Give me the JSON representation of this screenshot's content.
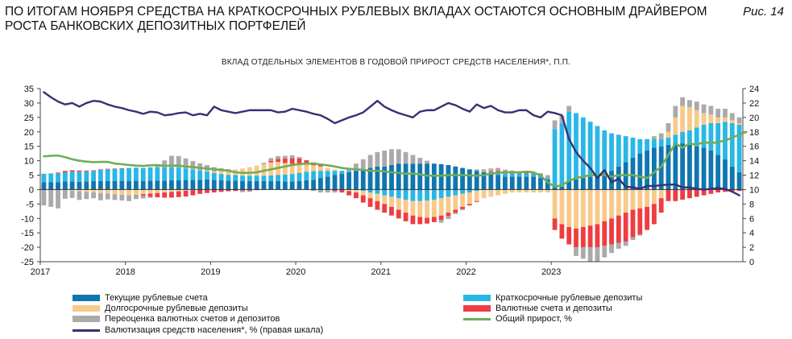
{
  "header": {
    "title_line1": "ПО ИТОГАМ НОЯБРЯ СРЕДСТВА НА КРАТКОСРОЧНЫХ РУБЛЕВЫХ ВКЛАДАХ ОСТАЮТСЯ ОСНОВНЫМ ДРАЙВЕРОМ",
    "title_line2": "РОСТА БАНКОВСКИХ ДЕПОЗИТНЫХ ПОРТФЕЛЕЙ",
    "figure_label": "Рис. 14"
  },
  "chart_data": {
    "type": "bar",
    "stacked": true,
    "title": "ВКЛАД ОТДЕЛЬНЫХ ЭЛЕМЕНТОВ В ГОДОВОЙ ПРИРОСТ СРЕДСТВ НАСЕЛЕНИЯ*, П.П.",
    "x_start": "2017-01",
    "x_tick_labels": [
      "2017",
      "2018",
      "2019",
      "2020",
      "2021",
      "2022",
      "2023"
    ],
    "left_axis": {
      "min": -25,
      "max": 35,
      "step": 5,
      "tick_labels": [
        "35",
        "30",
        "25",
        "20",
        "15",
        "10",
        "5",
        "0",
        "-5",
        "-10",
        "-15",
        "-20",
        "-25"
      ]
    },
    "right_axis": {
      "min": 0,
      "max": 24,
      "step": 2,
      "tick_labels": [
        "24",
        "22",
        "20",
        "18",
        "16",
        "14",
        "12",
        "10",
        "8",
        "6",
        "4",
        "2",
        "0"
      ]
    },
    "colors": {
      "current": "#0f76b0",
      "shortterm": "#29b7e6",
      "longterm": "#f8c98a",
      "fx": "#ee3d42",
      "reval": "#aaaaaa",
      "total": "#6fad5a",
      "dollarization": "#3a2f73"
    },
    "series": [
      {
        "key": "current",
        "name": "Текущие рублевые счета",
        "axis": "left",
        "values": [
          2.5,
          2.6,
          2.6,
          2.8,
          2.8,
          2.7,
          2.8,
          2.9,
          3.0,
          3.0,
          3.0,
          3.0,
          3.0,
          3.1,
          3.0,
          3.1,
          3.1,
          3.1,
          3.2,
          3.2,
          3.3,
          3.3,
          3.4,
          3.5,
          3.3,
          3.2,
          3.1,
          3.1,
          3.0,
          3.0,
          3.0,
          3.0,
          2.9,
          2.9,
          2.8,
          2.8,
          3.0,
          3.2,
          3.4,
          4.0,
          4.5,
          5.0,
          5.5,
          6.0,
          6.5,
          7.0,
          7.5,
          8.0,
          8.0,
          8.5,
          9.0,
          9.0,
          9.0,
          9.0,
          9.0,
          9.0,
          8.8,
          8.5,
          8.0,
          7.5,
          7.0,
          6.5,
          6.0,
          5.5,
          5.0,
          4.5,
          4.5,
          4.5,
          4.5,
          4.5,
          4.0,
          3.5,
          1.0,
          1.0,
          3.0,
          3.5,
          4.0,
          4.5,
          5.0,
          5.5,
          6.5,
          8.0,
          9.5,
          11.0,
          12.5,
          13.5,
          14.5,
          15.0,
          15.5,
          16.0,
          16.0,
          15.5,
          15.0,
          14.5,
          13.5,
          12.0,
          10.5,
          8.0,
          6.0
        ]
      },
      {
        "key": "shortterm",
        "name": "Краткосрочные рублевые депозиты",
        "axis": "left",
        "values": [
          3.0,
          3.0,
          3.0,
          3.2,
          3.4,
          3.5,
          3.5,
          3.6,
          3.8,
          4.0,
          4.2,
          4.3,
          4.5,
          4.5,
          4.5,
          4.6,
          4.5,
          4.5,
          4.5,
          4.4,
          4.0,
          3.6,
          3.2,
          2.8,
          2.5,
          2.2,
          2.0,
          1.9,
          1.8,
          1.8,
          1.8,
          1.8,
          2.0,
          2.2,
          2.4,
          2.6,
          2.8,
          3.0,
          3.0,
          2.5,
          2.0,
          1.5,
          1.0,
          0.5,
          0.0,
          -0.5,
          -1.0,
          -1.5,
          -2.0,
          -2.5,
          -3.0,
          -3.5,
          -4.0,
          -4.0,
          -3.8,
          -3.5,
          -3.0,
          -2.5,
          -2.0,
          -1.5,
          -1.0,
          -0.5,
          0.0,
          0.5,
          1.0,
          1.0,
          1.0,
          1.0,
          1.0,
          1.0,
          1.0,
          0.5,
          20.0,
          22.0,
          24.0,
          23.0,
          21.0,
          19.0,
          17.0,
          15.0,
          13.0,
          11.0,
          9.0,
          7.0,
          5.0,
          4.0,
          3.0,
          2.5,
          2.5,
          3.0,
          4.0,
          5.0,
          6.5,
          8.0,
          9.5,
          11.0,
          13.0,
          15.0,
          16.5
        ]
      },
      {
        "key": "longterm",
        "name": "Долгосрочные рублевые депозиты",
        "axis": "left",
        "values": [
          0.0,
          0.0,
          0.0,
          -0.2,
          -0.4,
          -0.6,
          -0.8,
          -1.0,
          -1.2,
          -1.4,
          -1.6,
          -1.8,
          -2.0,
          -1.8,
          -1.6,
          -1.4,
          -1.2,
          -1.0,
          -0.8,
          -0.6,
          -0.4,
          -0.2,
          0.0,
          0.2,
          0.5,
          1.0,
          1.5,
          2.0,
          2.5,
          3.0,
          3.5,
          4.0,
          4.5,
          4.5,
          4.0,
          3.5,
          3.0,
          2.5,
          2.0,
          1.5,
          1.0,
          0.5,
          0.0,
          -0.5,
          -1.0,
          -1.5,
          -2.0,
          -2.5,
          -3.0,
          -3.5,
          -4.0,
          -4.5,
          -5.0,
          -5.5,
          -6.0,
          -6.0,
          -6.0,
          -5.5,
          -5.0,
          -4.5,
          -4.0,
          -3.5,
          -3.0,
          -2.5,
          -2.0,
          -1.5,
          -1.0,
          -1.0,
          -1.0,
          -1.0,
          -1.0,
          -1.0,
          -10.0,
          -12.0,
          -13.0,
          -13.5,
          -13.0,
          -12.5,
          -12.0,
          -11.0,
          -10.0,
          -9.0,
          -8.0,
          -7.0,
          -6.5,
          -6.0,
          -5.0,
          -3.0,
          2.0,
          6.0,
          9.0,
          8.0,
          6.0,
          4.0,
          3.0,
          2.0,
          1.5,
          1.0,
          0.5
        ]
      },
      {
        "key": "fx",
        "name": "Валютные счета и депозиты",
        "axis": "left",
        "values": [
          0.0,
          0.0,
          0.3,
          0.5,
          0.5,
          0.4,
          0.3,
          0.2,
          0.2,
          0.2,
          0.1,
          0.1,
          0.0,
          0.0,
          -0.5,
          -1.0,
          -1.5,
          -1.8,
          -2.0,
          -2.0,
          -2.0,
          -1.8,
          -1.5,
          -1.2,
          -1.0,
          -0.8,
          -0.6,
          -0.5,
          -0.4,
          -0.3,
          -0.2,
          0.0,
          0.5,
          1.0,
          1.5,
          2.0,
          2.0,
          1.5,
          1.0,
          0.5,
          0.0,
          -0.5,
          -1.0,
          -1.5,
          -2.0,
          -2.5,
          -3.0,
          -3.0,
          -3.0,
          -3.0,
          -3.0,
          -3.0,
          -3.0,
          -2.5,
          -2.0,
          -1.8,
          -1.5,
          -1.2,
          -1.0,
          -0.8,
          -0.5,
          -0.3,
          0.0,
          0.3,
          0.5,
          0.6,
          0.6,
          0.5,
          0.4,
          0.3,
          0.2,
          0.0,
          -4.0,
          -5.0,
          -6.0,
          -6.5,
          -7.0,
          -7.5,
          -8.0,
          -8.5,
          -9.0,
          -9.5,
          -10.0,
          -9.5,
          -9.0,
          -8.0,
          -7.0,
          -5.0,
          -4.0,
          -4.0,
          -3.5,
          -3.0,
          -2.5,
          -2.0,
          -1.5,
          -1.0,
          -0.8,
          -0.6,
          -0.5
        ]
      },
      {
        "key": "reval",
        "name": "Переоценка валютных счетов и депозитов",
        "axis": "left",
        "values": [
          -5.5,
          -6.0,
          -6.5,
          -3.0,
          -2.5,
          -3.0,
          -2.5,
          -2.0,
          -2.5,
          -2.0,
          -2.0,
          -2.0,
          -2.0,
          -1.5,
          -1.0,
          -0.5,
          1.0,
          2.5,
          4.0,
          4.0,
          3.5,
          3.0,
          2.5,
          2.0,
          1.5,
          1.0,
          0.5,
          0.0,
          -0.5,
          -0.5,
          0.0,
          0.5,
          1.0,
          1.0,
          1.0,
          1.0,
          0.5,
          0.0,
          -0.5,
          -1.0,
          -1.0,
          -0.5,
          0.0,
          1.0,
          2.5,
          3.5,
          4.5,
          5.0,
          5.5,
          5.5,
          5.0,
          4.0,
          3.0,
          2.0,
          1.0,
          0.0,
          -1.0,
          -1.0,
          -0.5,
          -0.3,
          0.0,
          0.5,
          1.0,
          1.0,
          1.0,
          0.8,
          0.5,
          0.3,
          0.2,
          0.1,
          0.5,
          1.0,
          3.0,
          2.5,
          2.0,
          -3.0,
          -4.0,
          -5.0,
          -5.0,
          -4.0,
          -3.0,
          -2.0,
          -1.5,
          -1.0,
          -0.5,
          0.0,
          1.0,
          2.0,
          3.0,
          4.0,
          3.0,
          2.5,
          3.0,
          3.0,
          3.0,
          3.0,
          3.0,
          2.5,
          2.0
        ]
      },
      {
        "key": "total",
        "name": "Общий прирост, %",
        "axis": "left",
        "type": "line",
        "values": [
          11.5,
          11.7,
          11.8,
          11.2,
          10.5,
          10.0,
          9.7,
          9.5,
          9.6,
          9.6,
          9.0,
          8.8,
          8.5,
          8.3,
          8.2,
          8.4,
          8.5,
          8.2,
          8.3,
          8.3,
          8.0,
          7.8,
          7.5,
          7.3,
          7.0,
          6.8,
          6.5,
          6.0,
          5.8,
          5.8,
          6.0,
          6.5,
          7.0,
          7.5,
          8.0,
          8.5,
          8.8,
          9.0,
          9.0,
          8.7,
          8.4,
          8.0,
          7.5,
          7.2,
          7.0,
          6.8,
          6.5,
          6.5,
          6.3,
          6.0,
          5.8,
          5.5,
          5.5,
          5.3,
          4.8,
          4.8,
          4.8,
          5.0,
          5.0,
          5.0,
          4.9,
          4.8,
          5.0,
          5.5,
          5.8,
          6.0,
          6.0,
          6.0,
          6.2,
          6.0,
          4.8,
          2.5,
          1.0,
          1.5,
          3.0,
          4.0,
          4.5,
          5.0,
          5.0,
          5.0,
          4.5,
          5.0,
          5.0,
          5.0,
          4.5,
          4.0,
          6.0,
          8.0,
          12.0,
          16.0,
          14.5,
          16.0,
          15.5,
          16.5,
          16.0,
          16.5,
          17.0,
          18.0,
          19.0,
          20.0
        ]
      },
      {
        "key": "dollarization",
        "name": "Валютизация средств населения*, % (правая шкала)",
        "axis": "right",
        "type": "line",
        "values": [
          23.5,
          22.8,
          22.2,
          21.8,
          22.0,
          21.5,
          22.0,
          22.3,
          22.2,
          21.8,
          21.5,
          21.3,
          21.0,
          20.8,
          20.5,
          20.8,
          20.7,
          20.3,
          20.4,
          20.6,
          20.7,
          20.3,
          20.5,
          20.3,
          21.5,
          21.0,
          20.8,
          20.6,
          20.8,
          21.0,
          21.0,
          21.0,
          21.0,
          20.7,
          20.8,
          21.2,
          21.0,
          20.8,
          20.5,
          20.3,
          19.8,
          19.2,
          19.6,
          20.0,
          20.3,
          20.7,
          21.5,
          22.3,
          21.5,
          21.0,
          20.6,
          20.3,
          20.0,
          20.8,
          21.0,
          21.0,
          21.5,
          22.0,
          21.7,
          21.2,
          20.8,
          21.8,
          21.3,
          21.6,
          21.0,
          20.7,
          20.7,
          21.0,
          21.0,
          20.3,
          20.0,
          20.8,
          20.6,
          20.3,
          17.0,
          15.2,
          14.0,
          13.0,
          11.6,
          12.7,
          11.0,
          11.5,
          10.4,
          10.3,
          10.1,
          10.5,
          10.5,
          10.6,
          10.7,
          10.7,
          10.3,
          10.3,
          10.1,
          10.0,
          10.1,
          10.2,
          10.1,
          9.7,
          9.2
        ]
      }
    ],
    "legend": [
      {
        "key": "current",
        "label": "Текущие рублевые счета",
        "kind": "bar"
      },
      {
        "key": "shortterm",
        "label": "Краткосрочные рублевые депозиты",
        "kind": "bar"
      },
      {
        "key": "longterm",
        "label": "Долгосрочные рублевые депозиты",
        "kind": "bar"
      },
      {
        "key": "fx",
        "label": "Валютные счета и депозиты",
        "kind": "bar"
      },
      {
        "key": "reval",
        "label": "Переоценка валютных счетов и депозитов",
        "kind": "bar"
      },
      {
        "key": "total",
        "label": "Общий прирост, %",
        "kind": "line"
      },
      {
        "key": "dollarization",
        "label": "Валютизация средств населения*, % (правая шкала)",
        "kind": "line"
      }
    ]
  }
}
